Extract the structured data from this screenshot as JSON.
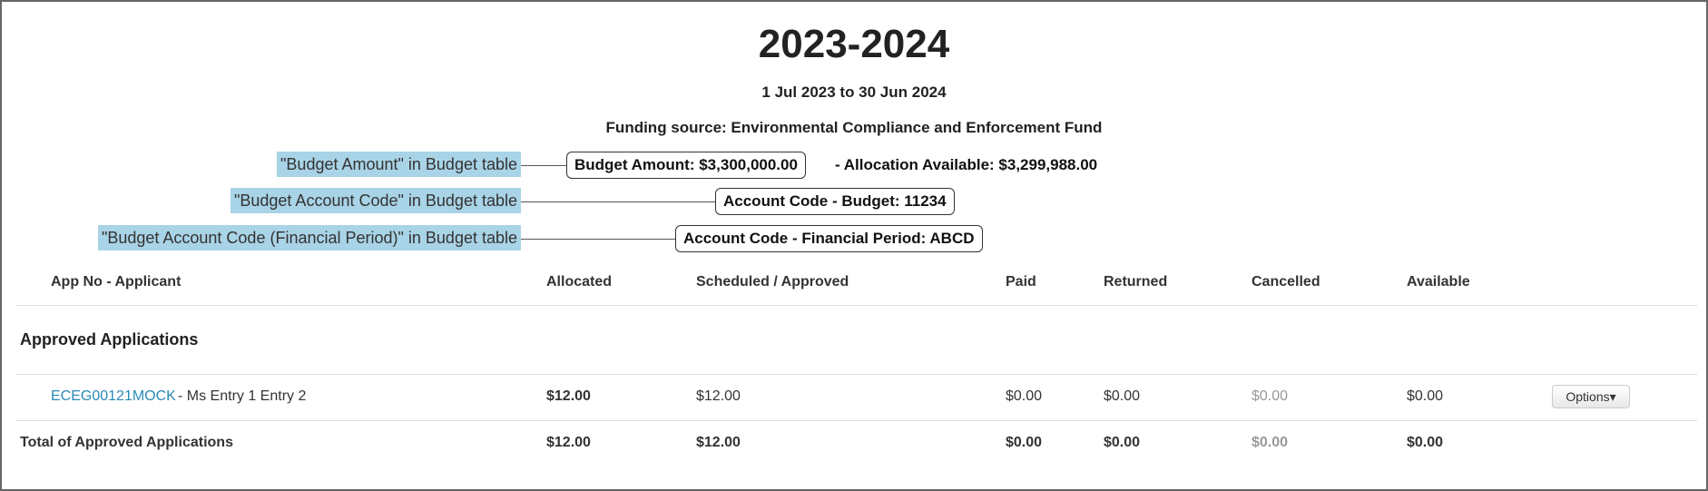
{
  "header": {
    "title": "2023-2024",
    "period": "1 Jul 2023 to 30 Jun 2024",
    "funding_source": "Funding source: Environmental Compliance and Enforcement Fund"
  },
  "budget": {
    "budget_amount": "Budget Amount: $3,300,000.00",
    "allocation_available": "- Allocation Available: $3,299,988.00",
    "account_code_budget": "Account Code - Budget: 11234",
    "account_code_financial_period": "Account Code - Financial Period: ABCD"
  },
  "annotations": {
    "budget_amount": "\"Budget Amount\" in Budget table",
    "budget_account_code": "\"Budget Account Code\" in Budget table",
    "financial_period": "\"Budget Account Code (Financial Period)\" in Budget table",
    "highlight_color": "#a9d3e6"
  },
  "table": {
    "columns": [
      "App No - Applicant",
      "Allocated",
      "Scheduled / Approved",
      "Paid",
      "Returned",
      "Cancelled",
      "Available"
    ],
    "section": "Approved Applications",
    "rows": [
      {
        "app_no": "ECEG00121MOCK",
        "applicant": " - Ms Entry 1 Entry 2",
        "allocated": "$12.00",
        "scheduled": "$12.00",
        "paid": "$0.00",
        "returned": "$0.00",
        "cancelled": "$0.00",
        "available": "$0.00",
        "options": "Options▾"
      }
    ],
    "total": {
      "label": "Total of Approved Applications",
      "allocated": "$12.00",
      "scheduled": "$12.00",
      "paid": "$0.00",
      "returned": "$0.00",
      "cancelled": "$0.00",
      "available": "$0.00"
    }
  }
}
